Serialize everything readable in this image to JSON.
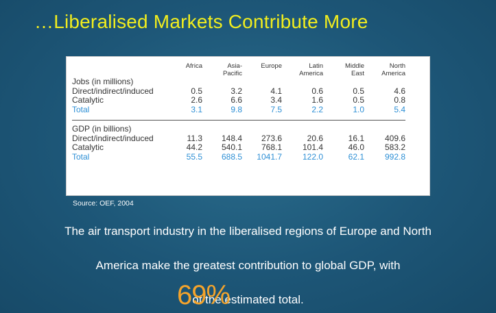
{
  "slide": {
    "title": "…Liberalised Markets Contribute More",
    "source": "Source: OEF, 2004",
    "paragraph_line1": "The air transport industry in the liberalised regions of Europe and North",
    "paragraph_line2": "America make the greatest contribution to global GDP, with",
    "paragraph_line3_prefix": "of the estimated total.",
    "highlight_percent": "69%"
  },
  "table": {
    "columns": [
      {
        "line1": "Africa",
        "line2": ""
      },
      {
        "line1": "Asia-",
        "line2": "Pacific"
      },
      {
        "line1": "Europe",
        "line2": ""
      },
      {
        "line1": "Latin",
        "line2": "America"
      },
      {
        "line1": "Middle",
        "line2": "East"
      },
      {
        "line1": "North",
        "line2": "America"
      }
    ],
    "sections": [
      {
        "heading": "Jobs (in millions)",
        "rows": [
          {
            "label": "Direct/indirect/induced",
            "values": [
              "0.5",
              "3.2",
              "4.1",
              "0.6",
              "0.5",
              "4.6"
            ],
            "total": false
          },
          {
            "label": "Catalytic",
            "values": [
              "2.6",
              "6.6",
              "3.4",
              "1.6",
              "0.5",
              "0.8"
            ],
            "total": false
          },
          {
            "label": "Total",
            "values": [
              "3.1",
              "9.8",
              "7.5",
              "2.2",
              "1.0",
              "5.4"
            ],
            "total": true
          }
        ]
      },
      {
        "heading": "GDP (in billions)",
        "rows": [
          {
            "label": "Direct/indirect/induced",
            "values": [
              "11.3",
              "148.4",
              "273.6",
              "20.6",
              "16.1",
              "409.6"
            ],
            "total": false
          },
          {
            "label": "Catalytic",
            "values": [
              "44.2",
              "540.1",
              "768.1",
              "101.4",
              "46.0",
              "583.2"
            ],
            "total": false
          },
          {
            "label": "Total",
            "values": [
              "55.5",
              "688.5",
              "1041.7",
              "122.0",
              "62.1",
              "992.8"
            ],
            "total": true
          }
        ]
      }
    ]
  }
}
